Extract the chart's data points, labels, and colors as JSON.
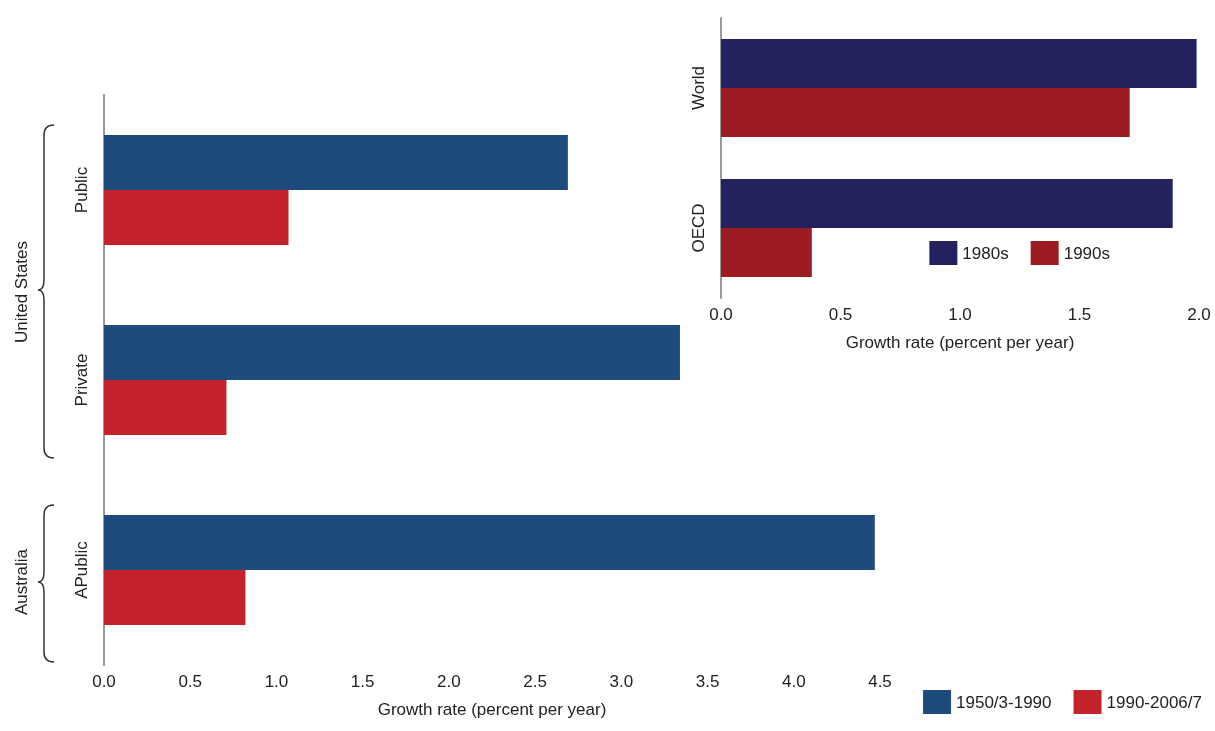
{
  "chart_data": [
    {
      "type": "bar",
      "orientation": "horizontal",
      "categories": [
        "Public",
        "Private",
        "APublic"
      ],
      "series": [
        {
          "name": "1950/3-1990",
          "color": "#1f4b7c",
          "values": [
            2.69,
            3.34,
            4.47
          ]
        },
        {
          "name": "1990-2006/7",
          "color": "#c4232b",
          "values": [
            1.07,
            0.71,
            0.82
          ]
        }
      ],
      "xlabel": "Growth rate (percent per year)",
      "xlim": [
        0,
        4.5
      ],
      "xticks": [
        {
          "value": 0,
          "label": "0.0"
        },
        {
          "value": 0.5,
          "label": "0.5"
        },
        {
          "value": 1,
          "label": "1.0"
        },
        {
          "value": 1.5,
          "label": "1.5"
        },
        {
          "value": 2,
          "label": "2.0"
        },
        {
          "value": 2.5,
          "label": "2.5"
        },
        {
          "value": 3,
          "label": "3.0"
        },
        {
          "value": 3.5,
          "label": "3.5"
        },
        {
          "value": 4,
          "label": "4.0"
        },
        {
          "value": 4.5,
          "label": "4.5"
        }
      ],
      "annotations": [
        "United States",
        "Australia"
      ],
      "legend": "bottom right",
      "grid": false
    },
    {
      "type": "bar",
      "orientation": "horizontal",
      "categories": [
        "World",
        "OECD"
      ],
      "series": [
        {
          "name": "1980s",
          "color": "#24225e",
          "values": [
            1.99,
            1.89
          ]
        },
        {
          "name": "1990s",
          "color": "#9c1c22",
          "values": [
            1.71,
            0.38
          ]
        }
      ],
      "xlabel": "Growth rate (percent per year)",
      "xlim": [
        0,
        2
      ],
      "xticks": [
        {
          "value": 0,
          "label": "0.0"
        },
        {
          "value": 0.5,
          "label": "0.5"
        },
        {
          "value": 1,
          "label": "1.0"
        },
        {
          "value": 1.5,
          "label": "1.5"
        },
        {
          "value": 2,
          "label": "2.0"
        }
      ],
      "legend": "bottom right",
      "grid": false
    }
  ]
}
